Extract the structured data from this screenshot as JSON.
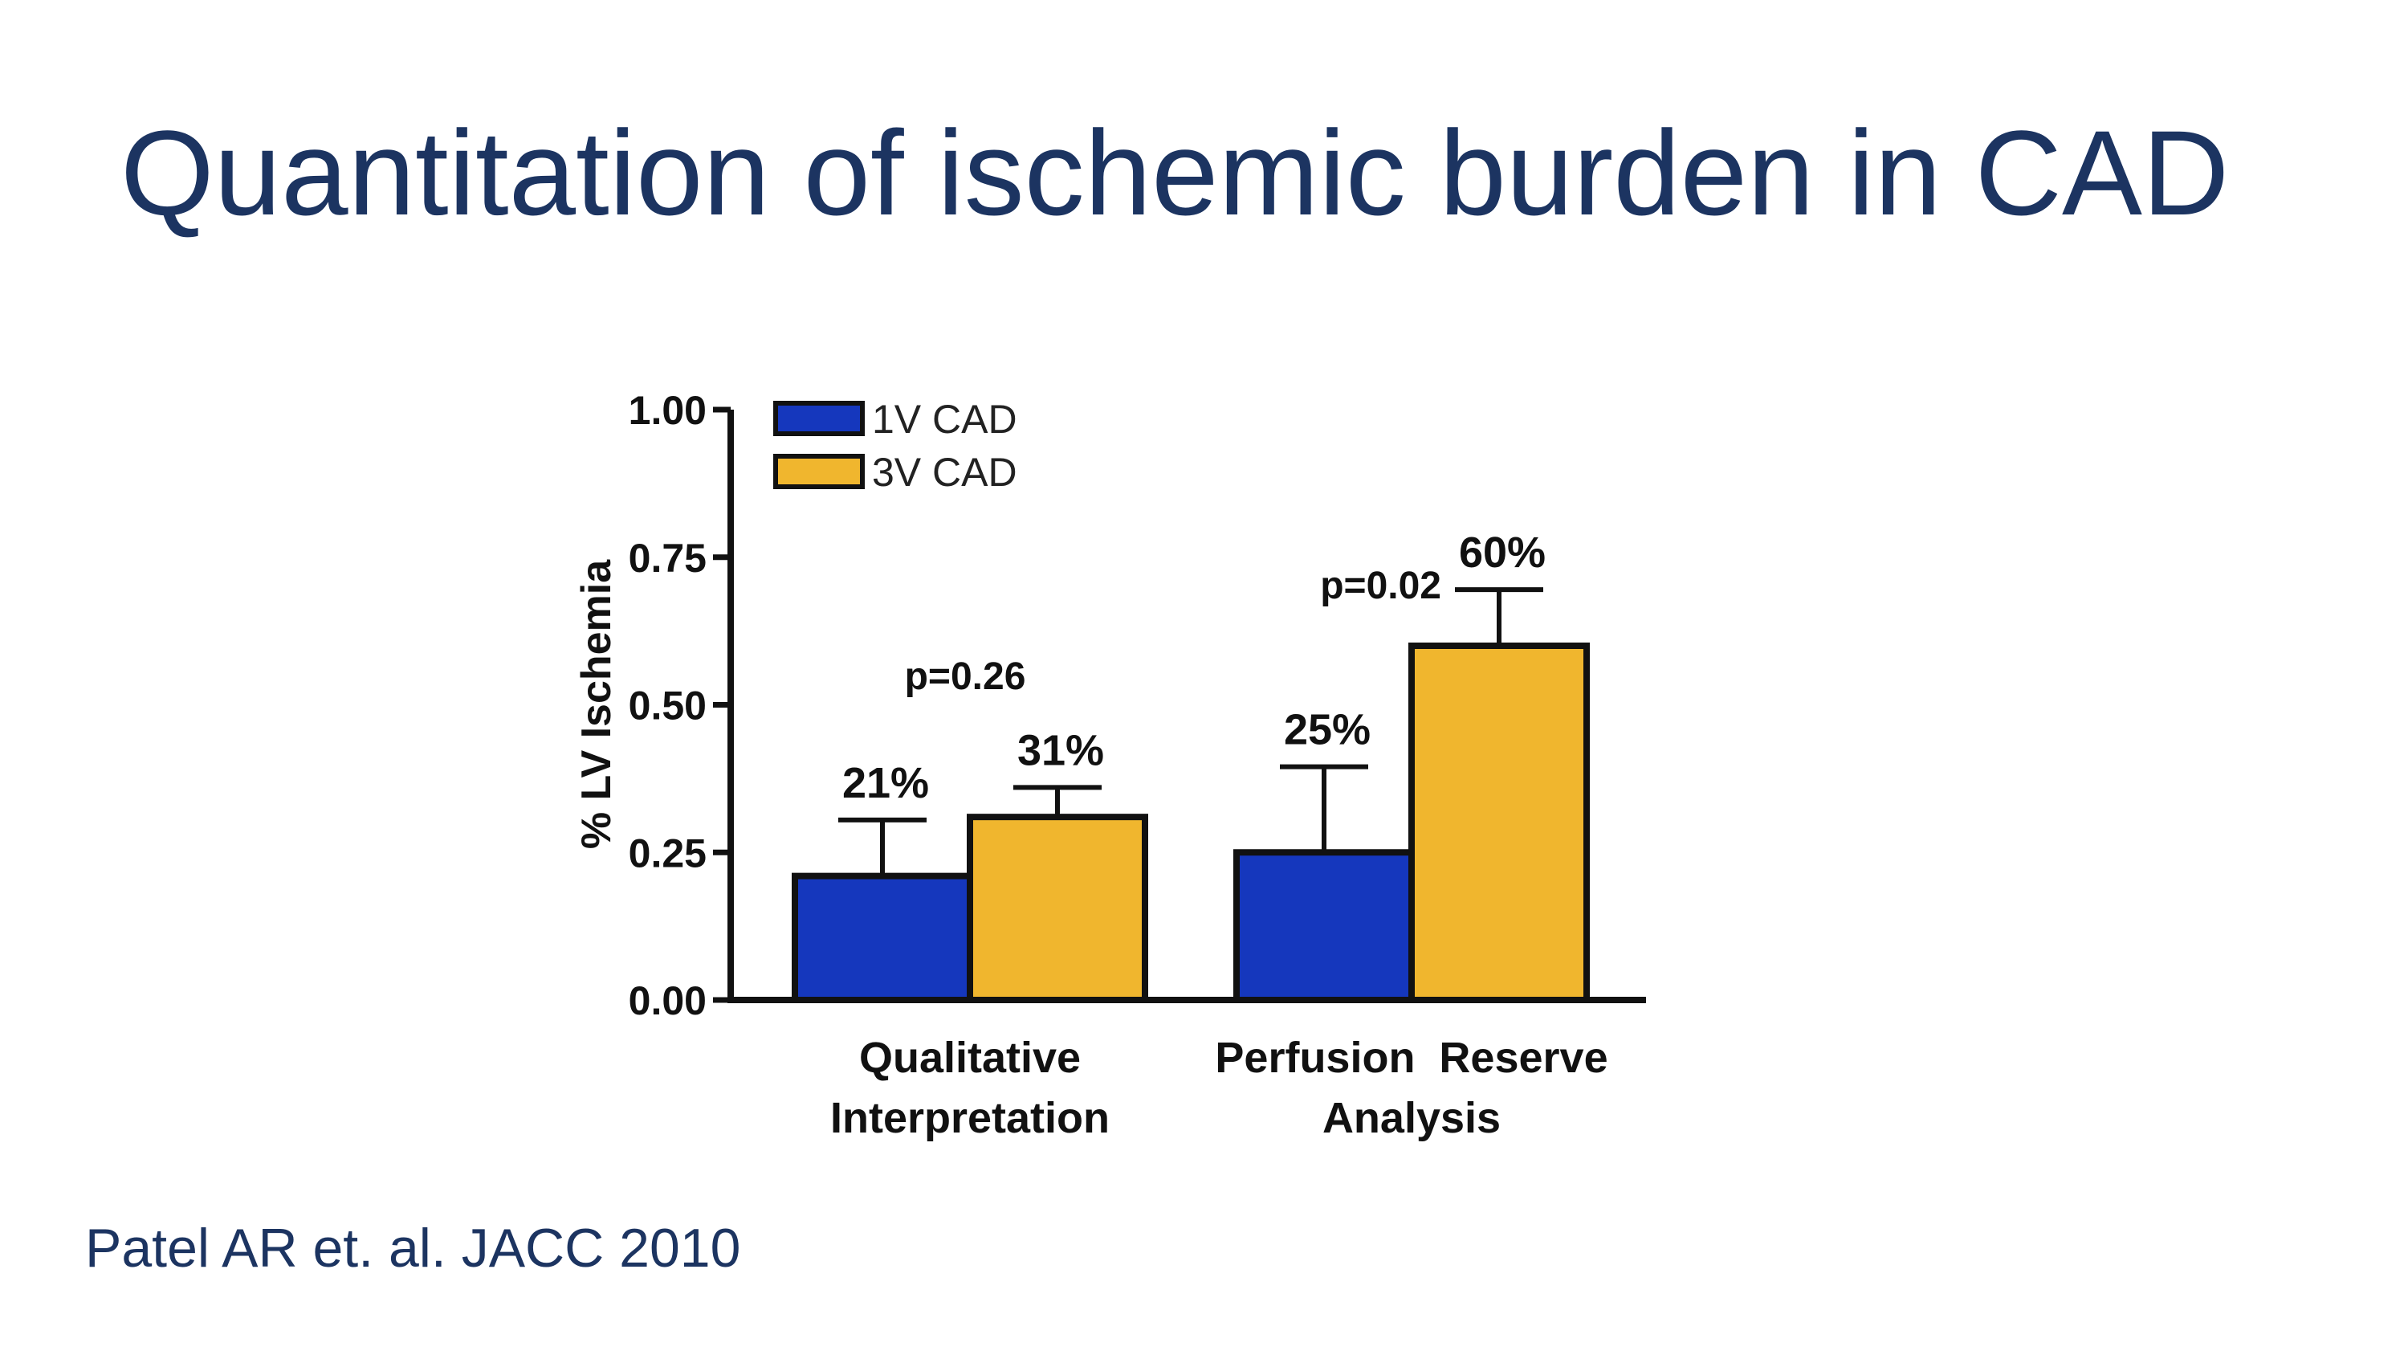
{
  "slide": {
    "title": "Quantitation of ischemic burden in CAD",
    "citation": "Patel AR et. al. JACC 2010"
  },
  "colors": {
    "title": "#1c3461",
    "series_1v": "#1537bd",
    "series_3v": "#f0b62e",
    "axis": "#111111"
  },
  "chart_data": {
    "type": "bar",
    "title": "",
    "xlabel": "",
    "ylabel": "% LV Ischemia",
    "ylim": [
      0,
      1.0
    ],
    "yticks": [
      "0.00",
      "0.25",
      "0.50",
      "0.75",
      "1.00"
    ],
    "ytick_values": [
      0,
      0.25,
      0.5,
      0.75,
      1.0
    ],
    "categories": [
      [
        "Qualitative",
        "Interpretation"
      ],
      [
        "Perfusion  Reserve",
        "Analysis"
      ]
    ],
    "series": [
      {
        "name": "1V CAD",
        "values": [
          0.21,
          0.25
        ],
        "error_upper": [
          0.305,
          0.395
        ],
        "labels": [
          "21%",
          "25%"
        ]
      },
      {
        "name": "3V CAD",
        "values": [
          0.31,
          0.6
        ],
        "error_upper": [
          0.36,
          0.695
        ],
        "labels": [
          "31%",
          "60%"
        ]
      }
    ],
    "p_values": [
      "p=0.26",
      "p=0.02"
    ],
    "legend_position": "top-left"
  }
}
